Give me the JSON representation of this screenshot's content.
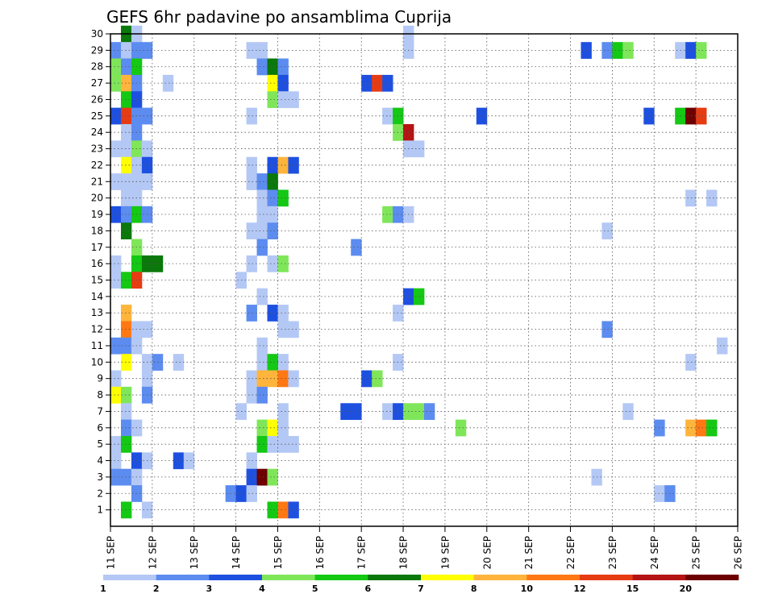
{
  "chart_data": {
    "type": "heatmap",
    "title": "GEFS 6hr padavine po ansamblima Cuprija",
    "x_tick_labels": [
      "11 SEP",
      "12 SEP",
      "13 SEP",
      "14 SEP",
      "15 SEP",
      "16 SEP",
      "17 SEP",
      "18 SEP",
      "19 SEP",
      "20 SEP",
      "21 SEP",
      "22 SEP",
      "23 SEP",
      "24 SEP",
      "25 SEP",
      "26 SEP"
    ],
    "y_tick_labels": [
      "1",
      "2",
      "3",
      "4",
      "5",
      "6",
      "7",
      "8",
      "9",
      "10",
      "11",
      "12",
      "13",
      "14",
      "15",
      "16",
      "17",
      "18",
      "19",
      "20",
      "21",
      "22",
      "23",
      "24",
      "25",
      "26",
      "27",
      "28",
      "29",
      "30"
    ],
    "x_range_days": [
      0,
      15
    ],
    "y_range": [
      0,
      30
    ],
    "steps_per_day": 4,
    "grid": "dotted",
    "colorbar": {
      "labels": [
        "1",
        "2",
        "3",
        "4",
        "5",
        "6",
        "7",
        "8",
        "10",
        "12",
        "15",
        "20"
      ],
      "colors": [
        "#b4c8f5",
        "#5c8cf0",
        "#1e50e0",
        "#7fe65a",
        "#14c814",
        "#0a780a",
        "#ffff00",
        "#ffb43c",
        "#ff7814",
        "#e63c14",
        "#b41414",
        "#6e0000"
      ]
    },
    "cells": [
      [
        30,
        1,
        5
      ],
      [
        30,
        2,
        0
      ],
      [
        30,
        28,
        0
      ],
      [
        29,
        0,
        1
      ],
      [
        29,
        1,
        0
      ],
      [
        29,
        2,
        1
      ],
      [
        29,
        3,
        1
      ],
      [
        29,
        13,
        0
      ],
      [
        29,
        14,
        0
      ],
      [
        29,
        28,
        0
      ],
      [
        29,
        45,
        2
      ],
      [
        29,
        47,
        1
      ],
      [
        29,
        48,
        4
      ],
      [
        29,
        49,
        3
      ],
      [
        29,
        54,
        0
      ],
      [
        29,
        55,
        2
      ],
      [
        29,
        56,
        3
      ],
      [
        28,
        0,
        3
      ],
      [
        28,
        1,
        1
      ],
      [
        28,
        2,
        4
      ],
      [
        28,
        14,
        1
      ],
      [
        28,
        15,
        5
      ],
      [
        28,
        16,
        1
      ],
      [
        27,
        0,
        3
      ],
      [
        27,
        1,
        7
      ],
      [
        27,
        2,
        1
      ],
      [
        27,
        5,
        0
      ],
      [
        27,
        15,
        6
      ],
      [
        27,
        16,
        2
      ],
      [
        27,
        24,
        2
      ],
      [
        27,
        25,
        9
      ],
      [
        27,
        26,
        2
      ],
      [
        26,
        1,
        4
      ],
      [
        26,
        2,
        2
      ],
      [
        26,
        15,
        3
      ],
      [
        26,
        16,
        0
      ],
      [
        26,
        17,
        0
      ],
      [
        25,
        0,
        2
      ],
      [
        25,
        1,
        9
      ],
      [
        25,
        2,
        1
      ],
      [
        25,
        3,
        1
      ],
      [
        25,
        13,
        0
      ],
      [
        25,
        26,
        0
      ],
      [
        25,
        27,
        4
      ],
      [
        25,
        35,
        2
      ],
      [
        25,
        51,
        2
      ],
      [
        25,
        54,
        4
      ],
      [
        25,
        55,
        11
      ],
      [
        25,
        56,
        9
      ],
      [
        24,
        1,
        0
      ],
      [
        24,
        2,
        1
      ],
      [
        24,
        27,
        3
      ],
      [
        24,
        28,
        10
      ],
      [
        23,
        0,
        0
      ],
      [
        23,
        1,
        0
      ],
      [
        23,
        2,
        3
      ],
      [
        23,
        3,
        0
      ],
      [
        23,
        28,
        0
      ],
      [
        23,
        29,
        0
      ],
      [
        22,
        1,
        6
      ],
      [
        22,
        2,
        0
      ],
      [
        22,
        3,
        2
      ],
      [
        22,
        13,
        0
      ],
      [
        22,
        15,
        2
      ],
      [
        22,
        16,
        7
      ],
      [
        22,
        17,
        2
      ],
      [
        21,
        0,
        0
      ],
      [
        21,
        1,
        0
      ],
      [
        21,
        2,
        0
      ],
      [
        21,
        3,
        0
      ],
      [
        21,
        13,
        0
      ],
      [
        21,
        14,
        1
      ],
      [
        21,
        15,
        5
      ],
      [
        20,
        1,
        0
      ],
      [
        20,
        2,
        0
      ],
      [
        20,
        14,
        0
      ],
      [
        20,
        15,
        1
      ],
      [
        20,
        16,
        4
      ],
      [
        20,
        55,
        0
      ],
      [
        20,
        57,
        0
      ],
      [
        19,
        0,
        2
      ],
      [
        19,
        1,
        1
      ],
      [
        19,
        2,
        4
      ],
      [
        19,
        3,
        1
      ],
      [
        19,
        14,
        0
      ],
      [
        19,
        15,
        0
      ],
      [
        19,
        26,
        3
      ],
      [
        19,
        27,
        1
      ],
      [
        19,
        28,
        0
      ],
      [
        18,
        1,
        5
      ],
      [
        18,
        13,
        0
      ],
      [
        18,
        14,
        0
      ],
      [
        18,
        15,
        1
      ],
      [
        18,
        47,
        0
      ],
      [
        17,
        2,
        3
      ],
      [
        17,
        14,
        1
      ],
      [
        17,
        23,
        1
      ],
      [
        16,
        0,
        0
      ],
      [
        16,
        2,
        4
      ],
      [
        16,
        3,
        5
      ],
      [
        16,
        4,
        5
      ],
      [
        16,
        13,
        0
      ],
      [
        16,
        15,
        0
      ],
      [
        16,
        16,
        3
      ],
      [
        15,
        0,
        0
      ],
      [
        15,
        1,
        4
      ],
      [
        15,
        2,
        9
      ],
      [
        15,
        12,
        0
      ],
      [
        14,
        14,
        0
      ],
      [
        14,
        28,
        2
      ],
      [
        14,
        29,
        4
      ],
      [
        13,
        1,
        7
      ],
      [
        13,
        13,
        1
      ],
      [
        13,
        15,
        2
      ],
      [
        13,
        16,
        0
      ],
      [
        13,
        27,
        0
      ],
      [
        12,
        1,
        8
      ],
      [
        12,
        2,
        0
      ],
      [
        12,
        3,
        0
      ],
      [
        12,
        16,
        0
      ],
      [
        12,
        17,
        0
      ],
      [
        12,
        47,
        1
      ],
      [
        11,
        0,
        1
      ],
      [
        11,
        1,
        1
      ],
      [
        11,
        2,
        0
      ],
      [
        11,
        14,
        0
      ],
      [
        11,
        58,
        0
      ],
      [
        10,
        1,
        6
      ],
      [
        10,
        3,
        0
      ],
      [
        10,
        4,
        1
      ],
      [
        10,
        6,
        0
      ],
      [
        10,
        14,
        0
      ],
      [
        10,
        16,
        0
      ],
      [
        10,
        15,
        4
      ],
      [
        10,
        27,
        0
      ],
      [
        10,
        55,
        0
      ],
      [
        9,
        0,
        0
      ],
      [
        9,
        3,
        0
      ],
      [
        9,
        13,
        0
      ],
      [
        9,
        14,
        7
      ],
      [
        9,
        15,
        7
      ],
      [
        9,
        16,
        8
      ],
      [
        9,
        17,
        0
      ],
      [
        9,
        24,
        2
      ],
      [
        9,
        25,
        3
      ],
      [
        8,
        0,
        6
      ],
      [
        8,
        1,
        3
      ],
      [
        8,
        3,
        1
      ],
      [
        8,
        13,
        0
      ],
      [
        8,
        14,
        1
      ],
      [
        7,
        1,
        0
      ],
      [
        7,
        12,
        0
      ],
      [
        7,
        16,
        0
      ],
      [
        7,
        22,
        2
      ],
      [
        7,
        23,
        2
      ],
      [
        7,
        26,
        0
      ],
      [
        7,
        27,
        2
      ],
      [
        7,
        28,
        3
      ],
      [
        7,
        29,
        3
      ],
      [
        7,
        30,
        1
      ],
      [
        7,
        49,
        0
      ],
      [
        6,
        1,
        1
      ],
      [
        6,
        2,
        0
      ],
      [
        6,
        14,
        3
      ],
      [
        6,
        15,
        6
      ],
      [
        6,
        16,
        0
      ],
      [
        6,
        33,
        3
      ],
      [
        6,
        52,
        1
      ],
      [
        6,
        55,
        7
      ],
      [
        6,
        56,
        8
      ],
      [
        6,
        57,
        4
      ],
      [
        5,
        0,
        0
      ],
      [
        5,
        1,
        4
      ],
      [
        5,
        14,
        4
      ],
      [
        5,
        15,
        0
      ],
      [
        5,
        16,
        0
      ],
      [
        5,
        17,
        0
      ],
      [
        4,
        0,
        0
      ],
      [
        4,
        2,
        2
      ],
      [
        4,
        3,
        0
      ],
      [
        4,
        6,
        2
      ],
      [
        4,
        7,
        0
      ],
      [
        4,
        13,
        0
      ],
      [
        3,
        0,
        1
      ],
      [
        3,
        1,
        1
      ],
      [
        3,
        2,
        0
      ],
      [
        3,
        13,
        2
      ],
      [
        3,
        14,
        11
      ],
      [
        3,
        15,
        3
      ],
      [
        3,
        46,
        0
      ],
      [
        2,
        2,
        1
      ],
      [
        2,
        11,
        1
      ],
      [
        2,
        12,
        2
      ],
      [
        2,
        13,
        0
      ],
      [
        2,
        52,
        0
      ],
      [
        2,
        53,
        1
      ],
      [
        1,
        1,
        4
      ],
      [
        1,
        3,
        0
      ],
      [
        1,
        15,
        4
      ],
      [
        1,
        16,
        8
      ],
      [
        1,
        17,
        2
      ]
    ]
  }
}
